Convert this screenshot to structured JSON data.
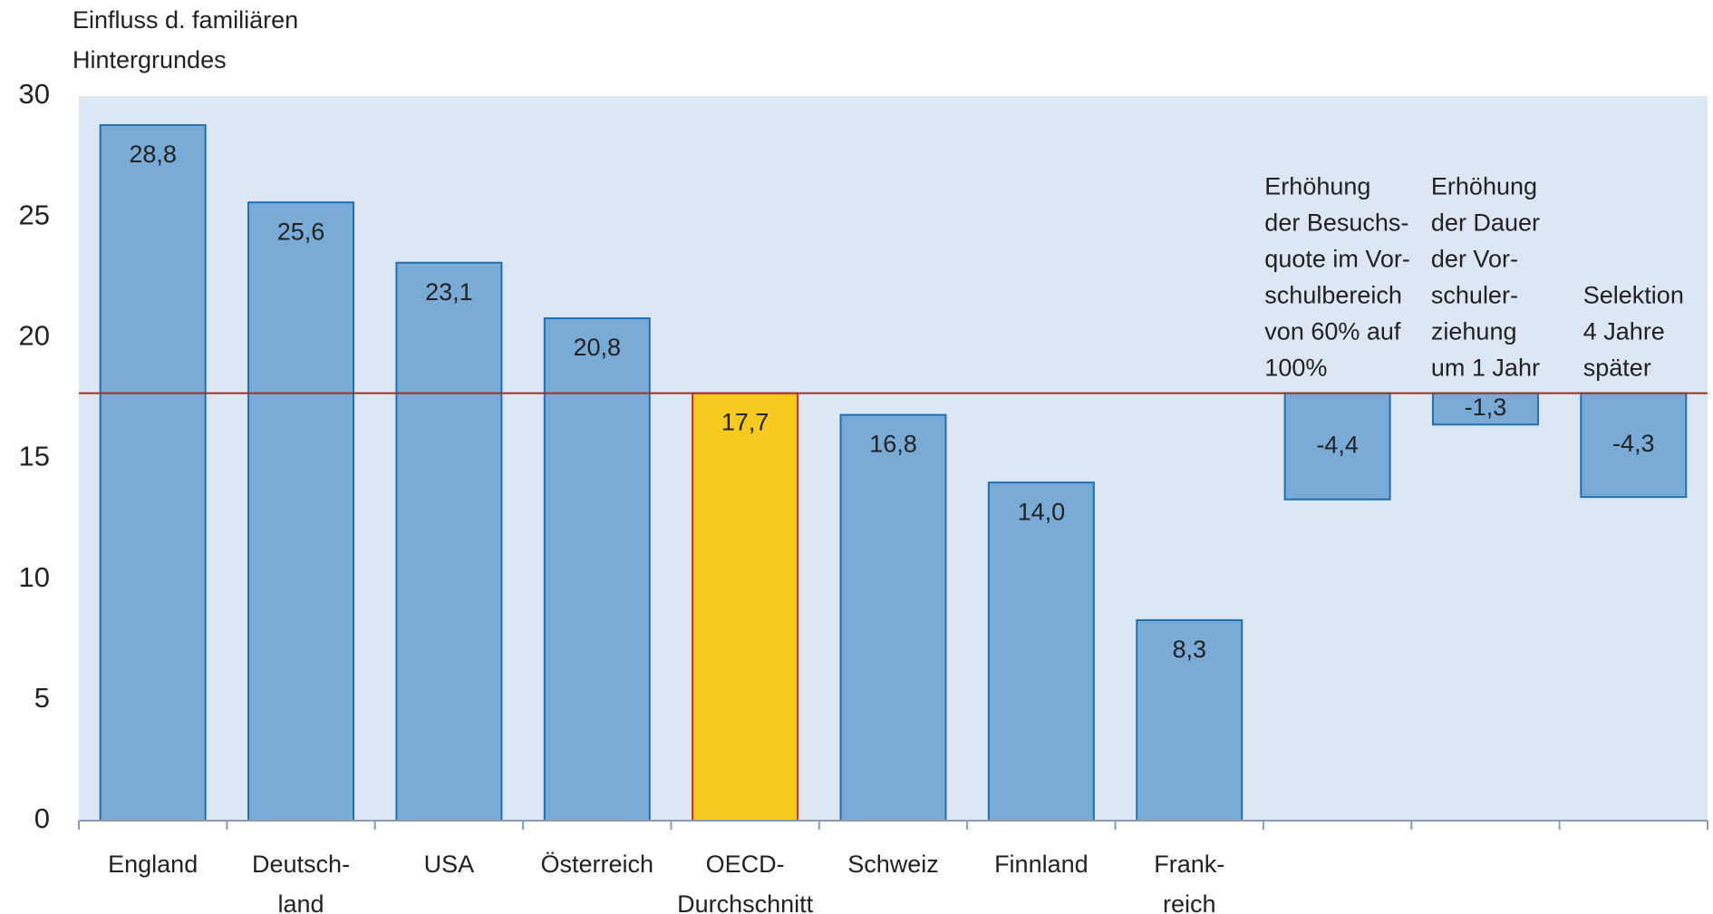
{
  "chart_data": {
    "type": "bar",
    "ylabel": [
      "Einfluss d. familiären",
      "Hintergrundes"
    ],
    "categories": [
      [
        "England"
      ],
      [
        "Deutsch-",
        "land"
      ],
      [
        "USA"
      ],
      [
        "Österreich"
      ],
      [
        "OECD-",
        "Durchschnitt"
      ],
      [
        "Schweiz"
      ],
      [
        "Finnland"
      ],
      [
        "Frank-",
        "reich"
      ],
      null,
      null,
      null
    ],
    "values": [
      28.8,
      25.6,
      23.1,
      20.8,
      17.7,
      16.8,
      14.0,
      8.3,
      -4.4,
      -1.3,
      -4.3
    ],
    "value_labels": [
      "28,8",
      "25,6",
      "23,1",
      "20,8",
      "17,7",
      "16,8",
      "14,0",
      "8,3",
      "-4,4",
      "-1,3",
      "-4,3"
    ],
    "annotations": [
      null,
      null,
      null,
      null,
      null,
      null,
      null,
      null,
      [
        "Erhöhung",
        "der Besuchs-",
        "quote im Vor-",
        "schulbereich",
        "von 60% auf",
        "100%"
      ],
      [
        "Erhöhung",
        "der Dauer",
        "der Vor-",
        "schuler-",
        "ziehung",
        "um 1 Jahr"
      ],
      [
        "Selektion",
        "4 Jahre",
        "später"
      ]
    ],
    "color": "#7aaad6",
    "edge_color": "#1f6fb5",
    "highlight": 4,
    "highlight_color": "#f8c91f",
    "highlight_text_color": "#c0302a",
    "reference_line_color": "#a0302a",
    "background": "#dde6f3",
    "ylim": [
      0,
      30
    ],
    "yticks": [
      0,
      5,
      10,
      15,
      20,
      25,
      30
    ],
    "grid": false
  }
}
